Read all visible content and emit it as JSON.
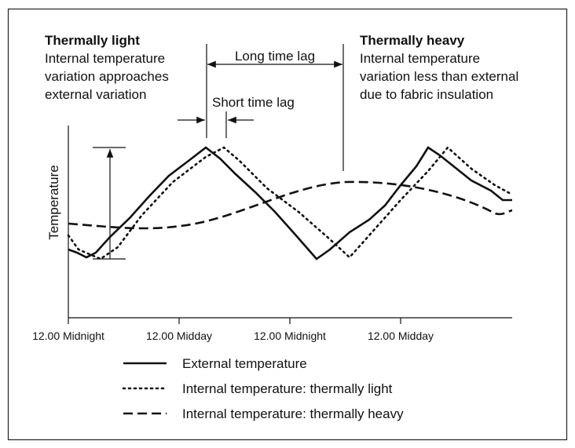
{
  "left_note": {
    "title": "Thermally light",
    "lines": [
      "Internal temperature",
      "variation approaches",
      "external variation"
    ]
  },
  "right_note": {
    "title": "Thermally heavy",
    "lines": [
      "Internal temperature",
      "variation less than external",
      "due to fabric insulation"
    ]
  },
  "long_lag": "Long time lag",
  "short_lag": "Short time lag",
  "y_axis_label": "Temperature",
  "x_labels": [
    "12.00  Midnight",
    "12.00  Midday",
    "12.00  Midnight",
    "12.00  Midday"
  ],
  "legend": [
    "External temperature",
    "Internal temperature: thermally light",
    "Internal temperature: thermally heavy"
  ]
}
